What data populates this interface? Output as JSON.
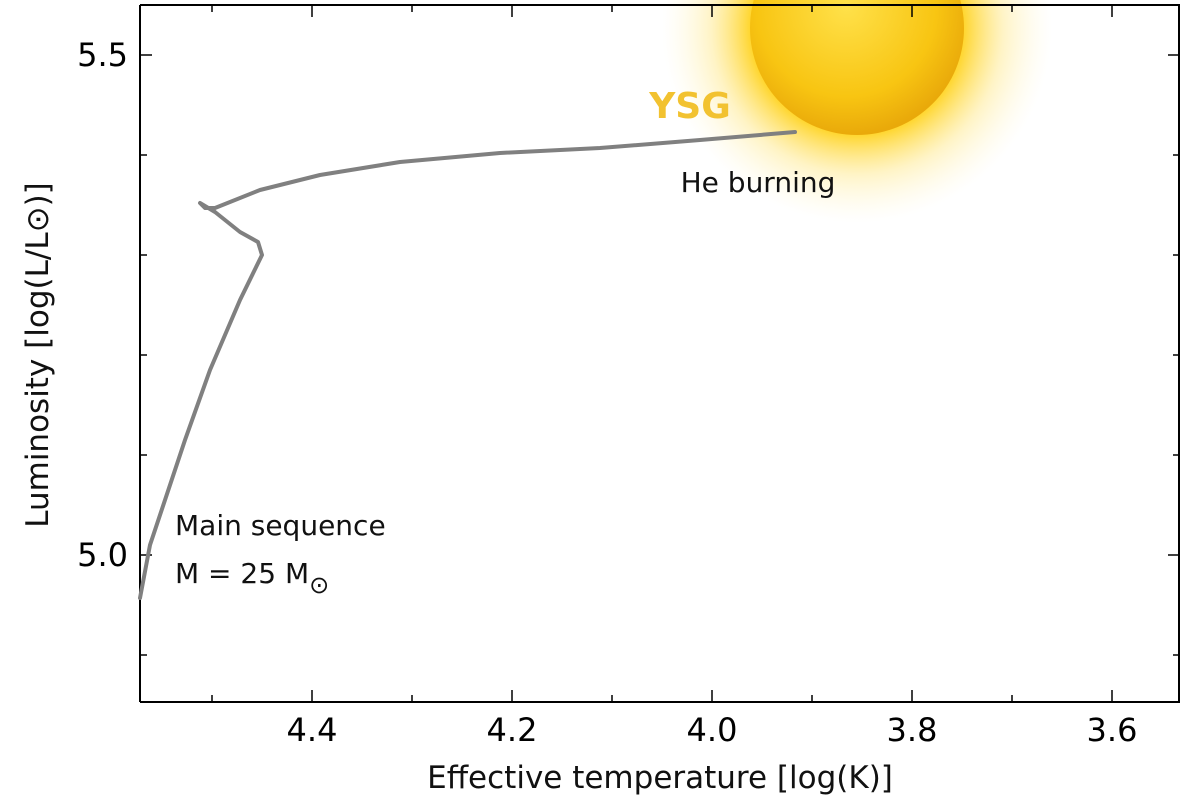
{
  "chart_data": {
    "type": "line",
    "x_label": "Effective temperature [log(K)]",
    "y_label": "Luminosity [log(L/L⊙)]",
    "xlim": [
      4.572,
      3.532
    ],
    "ylim": [
      4.853,
      5.55
    ],
    "xticks": [
      4.4,
      4.2,
      {
        "value": 4,
        "label": "4.0"
      },
      3.8,
      3.6
    ],
    "xminorticks": [
      4.5,
      4.3,
      4.1,
      3.9,
      3.7
    ],
    "yticks": [
      {
        "value": 5,
        "label": "5.0"
      },
      5.5
    ],
    "yminorticks": [
      4.9,
      5.1,
      5.2,
      5.3,
      5.4
    ],
    "series": [
      {
        "color": "#808080",
        "x": [
          4.572,
          4.562,
          4.547,
          4.527,
          4.502,
          4.472,
          4.45,
          4.454,
          4.472,
          4.497,
          4.512,
          4.507,
          4.497,
          4.452,
          4.392,
          4.312,
          4.212,
          4.112,
          4.012,
          3.917
        ],
        "values": [
          4.957,
          5.01,
          5.055,
          5.115,
          5.185,
          5.255,
          5.3,
          5.313,
          5.323,
          5.343,
          5.352,
          5.347,
          5.347,
          5.365,
          5.38,
          5.393,
          5.402,
          5.407,
          5.415,
          5.423
        ]
      }
    ],
    "annotations": {
      "ysg": "YSG",
      "he_burning": "He burning",
      "main_sequence": "Main sequence",
      "mass": "M = 25 M",
      "mass_subscript": "⊙"
    }
  }
}
